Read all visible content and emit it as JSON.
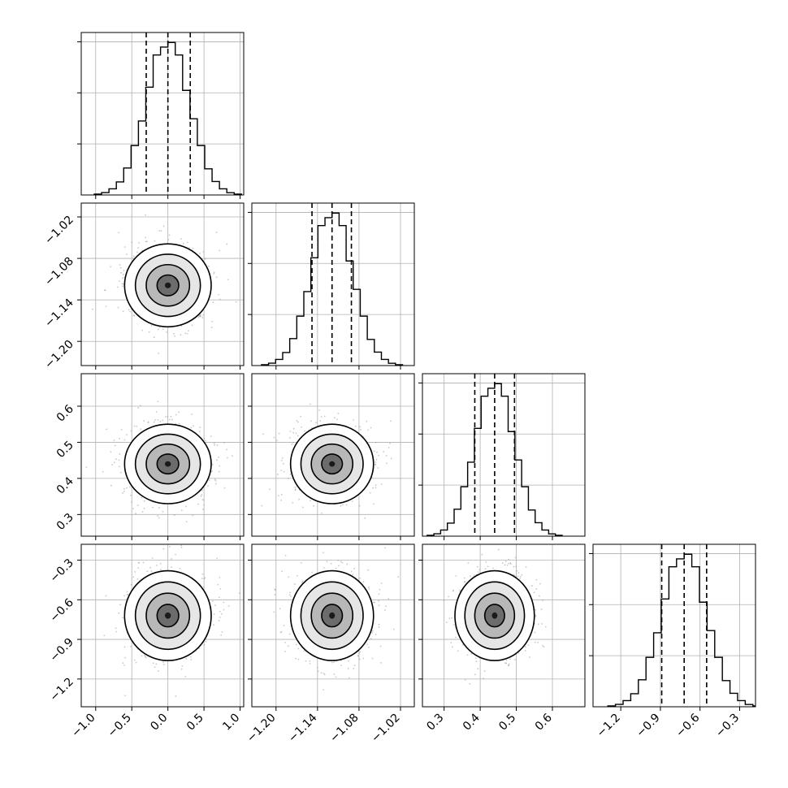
{
  "chart_data": {
    "type": "corner",
    "title": "",
    "grid": true,
    "colors": {
      "line": "#000000",
      "grid": "#b0b0b0",
      "scatter": "#9a9a9a",
      "density_dark": "#000000"
    },
    "params": [
      {
        "xlim": [
          -1.2,
          1.05
        ],
        "x_ticks": [
          -1.0,
          -0.5,
          0.0,
          0.5,
          1.0
        ],
        "x_tick_labels": [
          "−1.0",
          "−0.5",
          "0.0",
          "0.5",
          "1.0"
        ],
        "y_ticks": [],
        "y_tick_labels": [],
        "center": 0.0,
        "sigma": 0.3,
        "quantiles": [
          -0.3,
          0.0,
          0.31
        ]
      },
      {
        "xlim": [
          -1.235,
          -1.0
        ],
        "x_ticks": [
          -1.2,
          -1.14,
          -1.08,
          -1.02
        ],
        "x_tick_labels": [
          "−1.20",
          "−1.14",
          "−1.08",
          "−1.02"
        ],
        "y_ticks": [
          -1.02,
          -1.08,
          -1.14,
          -1.2
        ],
        "y_tick_labels": [
          "−1.02",
          "−1.08",
          "−1.14",
          "−1.20"
        ],
        "center": -1.119,
        "sigma": 0.03,
        "quantiles": [
          -1.148,
          -1.119,
          -1.091
        ]
      },
      {
        "xlim": [
          0.24,
          0.69
        ],
        "x_ticks": [
          0.3,
          0.4,
          0.5,
          0.6
        ],
        "x_tick_labels": [
          "0.3",
          "0.4",
          "0.5",
          "0.6"
        ],
        "y_ticks": [
          0.6,
          0.5,
          0.4,
          0.3
        ],
        "y_tick_labels": [
          "0.6",
          "0.5",
          "0.4",
          "0.3"
        ],
        "center": 0.44,
        "sigma": 0.055,
        "quantiles": [
          0.385,
          0.44,
          0.495
        ]
      },
      {
        "xlim": [
          -1.41,
          -0.18
        ],
        "x_ticks": [
          -1.2,
          -0.9,
          -0.6,
          -0.3
        ],
        "x_tick_labels": [
          "−1.2",
          "−0.9",
          "−0.6",
          "−0.3"
        ],
        "y_ticks": [
          -0.3,
          -0.6,
          -0.9,
          -1.2
        ],
        "y_tick_labels": [
          "−0.3",
          "−0.6",
          "−0.9",
          "−1.2"
        ],
        "center": -0.72,
        "sigma": 0.17,
        "quantiles": [
          -0.89,
          -0.72,
          -0.55
        ]
      }
    ],
    "hist_bins": 20,
    "contour_levels_sigma": [
      0.5,
      1.0,
      1.5,
      2.0
    ]
  }
}
